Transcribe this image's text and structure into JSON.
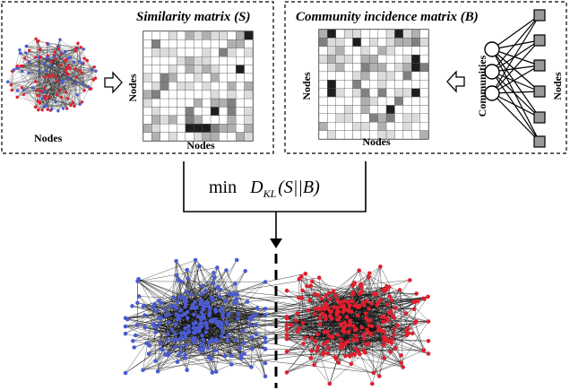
{
  "left_panel": {
    "title": "Similarity matrix (S)",
    "network_label": "Nodes",
    "matrix_row_label": "Nodes",
    "matrix_col_label": "Nodes"
  },
  "right_panel": {
    "title": "Community incidence matrix (B)",
    "matrix_row_label": "Nodes",
    "matrix_col_label": "Nodes",
    "communities_label": "Communities",
    "nodes_label": "Nodes"
  },
  "objective": {
    "min": "min",
    "d": "D",
    "sub": "KL",
    "expr": "(S||B)"
  },
  "colors": {
    "blue": "#4a5bd0",
    "red": "#e01f2d",
    "edge": "#111111",
    "border": "#000000"
  },
  "icons": {
    "arrow_right": "hollow-right-arrow-icon",
    "arrow_left": "hollow-left-arrow-icon",
    "arrow_down": "down-arrow-icon"
  }
}
